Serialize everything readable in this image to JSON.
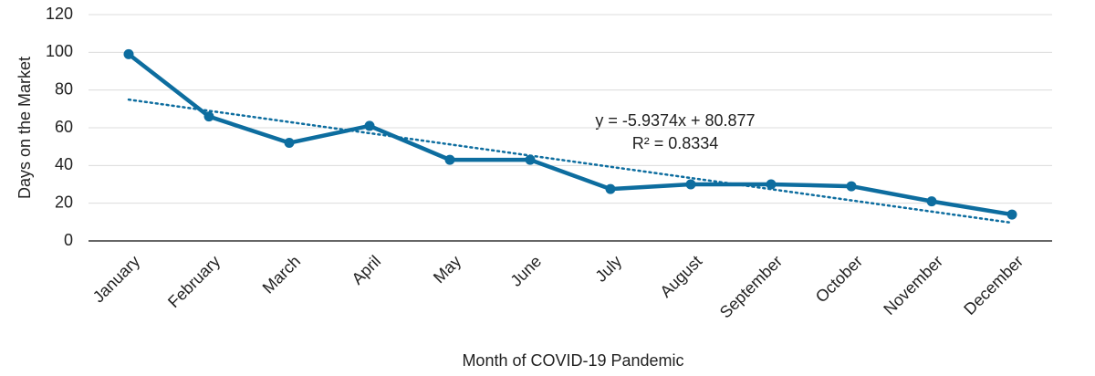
{
  "chart_data": {
    "type": "line",
    "x_label": "Month of COVID-19 Pandemic",
    "y_label": "Days on the Market",
    "categories": [
      "January",
      "February",
      "March",
      "April",
      "May",
      "June",
      "July",
      "August",
      "September",
      "October",
      "November",
      "December"
    ],
    "values": [
      99,
      66,
      52,
      61,
      43,
      43,
      27.5,
      30,
      30,
      29,
      21,
      14
    ],
    "color": "#0d6d9f",
    "ylim": [
      0,
      120
    ],
    "yticks": [
      0,
      20,
      40,
      60,
      80,
      100,
      120
    ],
    "grid": true,
    "trendline": {
      "slope": -5.9374,
      "intercept": 80.877,
      "equation_label": "y = -5.9374x + 80.877",
      "r2_label": "R² = 0.8334"
    }
  }
}
